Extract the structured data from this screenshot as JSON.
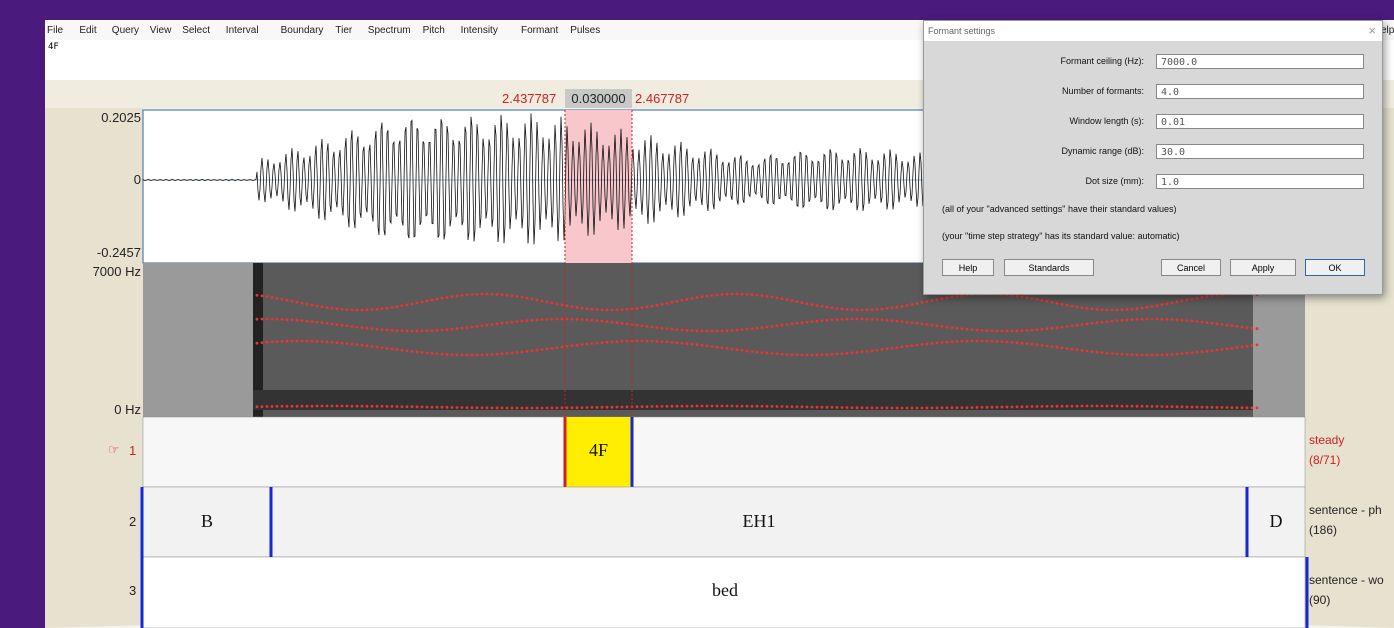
{
  "menu": [
    "File",
    "Edit",
    "Query",
    "View",
    "Select",
    "Interval",
    "Boundary",
    "Tier",
    "Spectrum",
    "Pitch",
    "Intensity",
    "Formant",
    "Pulses"
  ],
  "menu_right": "elp",
  "text_field": "4F",
  "selection": {
    "start": "2.437787",
    "duration": "0.030000",
    "end": "2.467787"
  },
  "waveform": {
    "max": "0.2025",
    "zero": "0",
    "min": "-0.2457"
  },
  "spectrogram": {
    "top": "7000 Hz",
    "bottom": "0 Hz"
  },
  "tiers": [
    {
      "marker": "☞",
      "number": "1",
      "intervals": [
        "4F"
      ],
      "name": "steady",
      "count": "(8/71)"
    },
    {
      "number": "2",
      "intervals": [
        "B",
        "EH1",
        "D"
      ],
      "name": "sentence - ph",
      "count": "(186)"
    },
    {
      "number": "3",
      "intervals": [
        "bed"
      ],
      "name": "sentence - wo",
      "count": "(90)"
    }
  ],
  "dialog": {
    "title": "Formant settings",
    "close": "×",
    "fields": [
      {
        "label": "Formant ceiling (Hz):",
        "value": "7000.0"
      },
      {
        "label": "Number of formants:",
        "value": "4.0"
      },
      {
        "label": "Window length (s):",
        "value": "0.01"
      },
      {
        "label": "Dynamic range (dB):",
        "value": "30.0"
      },
      {
        "label": "Dot size (mm):",
        "value": "1.0"
      }
    ],
    "notes": [
      "(all of your \"advanced settings\" have their standard values)",
      "(your \"time step strategy\" has its standard value: automatic)"
    ],
    "buttons": [
      "Help",
      "Standards",
      "Cancel",
      "Apply",
      "OK"
    ]
  }
}
